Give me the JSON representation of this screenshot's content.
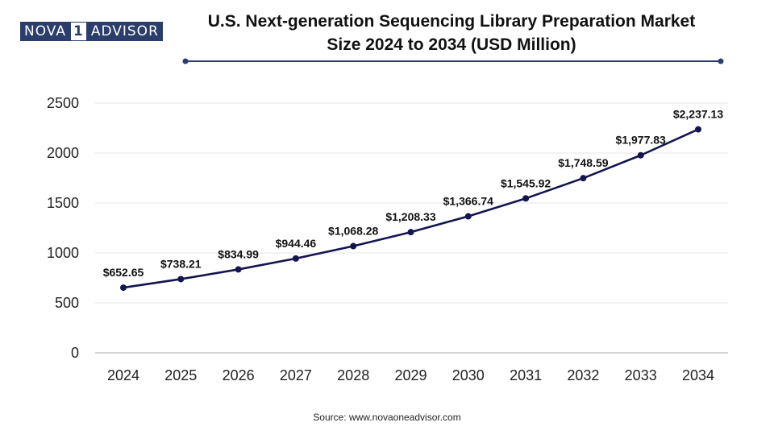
{
  "brand": {
    "part1": "NOVA",
    "part2": "1",
    "part3": "ADVISOR"
  },
  "title_line1": "U.S. Next-generation Sequencing Library Preparation Market",
  "title_line2": "Size 2024 to 2034 (USD Million)",
  "source": "Source: www.novaoneadvisor.com",
  "colors": {
    "line": "#14144f",
    "grid": "#e6e6e6",
    "axis": "#bbbbbb",
    "text": "#222222",
    "brand": "#2a3d6b"
  },
  "chart_data": {
    "type": "line",
    "title": "U.S. Next-generation Sequencing Library Preparation Market Size 2024 to 2034 (USD Million)",
    "xlabel": "",
    "ylabel": "",
    "categories": [
      "2024",
      "2025",
      "2026",
      "2027",
      "2028",
      "2029",
      "2030",
      "2031",
      "2032",
      "2033",
      "2034"
    ],
    "values": [
      652.65,
      738.21,
      834.99,
      944.46,
      1068.28,
      1208.33,
      1366.74,
      1545.92,
      1748.59,
      1977.83,
      2237.13
    ],
    "labels": [
      "$652.65",
      "$738.21",
      "$834.99",
      "$944.46",
      "$1,068.28",
      "$1,208.33",
      "$1,366.74",
      "$1,545.92",
      "$1,748.59",
      "$1,977.83",
      "$2,237.13"
    ],
    "ylim": [
      0,
      2500
    ],
    "yticks": [
      "0",
      "500",
      "1000",
      "1500",
      "2000",
      "2500"
    ],
    "grid": true,
    "legend": "none"
  }
}
